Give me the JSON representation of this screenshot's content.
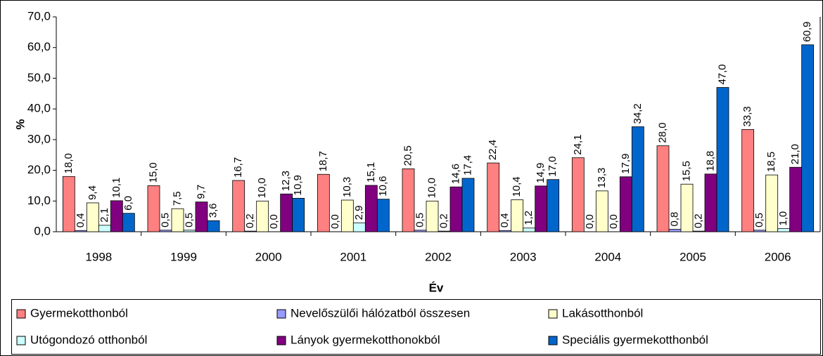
{
  "chart_data": {
    "type": "bar",
    "ylabel": "%",
    "xlabel": "Év",
    "categories": [
      "1998",
      "1999",
      "2000",
      "2001",
      "2002",
      "2003",
      "2004",
      "2005",
      "2006"
    ],
    "series": [
      {
        "name": "Gyermekotthonból",
        "color": "#ff8080",
        "values": [
          18.0,
          15.0,
          16.7,
          18.7,
          20.5,
          22.4,
          24.1,
          28.0,
          33.3
        ],
        "value_labels": [
          "18,0",
          "15,0",
          "16,7",
          "18,7",
          "20,5",
          "22,4",
          "24,1",
          "28,0",
          "33,3"
        ]
      },
      {
        "name": "Nevelőszülői hálózatból összesen",
        "color": "#9999ff",
        "values": [
          0.4,
          0.5,
          0.2,
          0.0,
          0.5,
          0.4,
          0.0,
          0.8,
          0.5
        ],
        "value_labels": [
          "0,4",
          "0,5",
          "0,2",
          "0,0",
          "0,5",
          "0,4",
          "0,0",
          "0,8",
          "0,5"
        ]
      },
      {
        "name": "Lakásotthonból",
        "color": "#ffffcc",
        "values": [
          9.4,
          7.5,
          10.0,
          10.3,
          10.0,
          10.4,
          13.3,
          15.5,
          18.5
        ],
        "value_labels": [
          "9,4",
          "7,5",
          "10,0",
          "10,3",
          "10,0",
          "10,4",
          "13,3",
          "15,5",
          "18,5"
        ]
      },
      {
        "name": "Utógondozó otthonból",
        "color": "#ccffff",
        "values": [
          2.1,
          0.5,
          0.0,
          2.9,
          0.2,
          1.2,
          0.0,
          0.2,
          1.0
        ],
        "value_labels": [
          "2,1",
          "0,5",
          "0,0",
          "2,9",
          "0,2",
          "1,2",
          "0,0",
          "0,2",
          "1,0"
        ]
      },
      {
        "name": "Lányok gyermekotthonokból",
        "color": "#800080",
        "values": [
          10.1,
          9.7,
          12.3,
          15.1,
          14.6,
          14.9,
          17.9,
          18.8,
          21.0
        ],
        "value_labels": [
          "10,1",
          "9,7",
          "12,3",
          "15,1",
          "14,6",
          "14,9",
          "17,9",
          "18,8",
          "21,0"
        ]
      },
      {
        "name": "Speciális gyermekotthonból",
        "color": "#0066cc",
        "values": [
          6.0,
          3.6,
          10.9,
          10.6,
          17.4,
          17.0,
          34.2,
          47.0,
          60.9
        ],
        "value_labels": [
          "6,0",
          "3,6",
          "10,9",
          "10,6",
          "17,4",
          "17,0",
          "34,2",
          "47,0",
          "60,9"
        ]
      }
    ],
    "ylim": [
      0,
      70
    ],
    "yticks": [
      {
        "value": 0,
        "label": "0,0"
      },
      {
        "value": 10,
        "label": "10,0"
      },
      {
        "value": 20,
        "label": "20,0"
      },
      {
        "value": 30,
        "label": "30,0"
      },
      {
        "value": 40,
        "label": "40,0"
      },
      {
        "value": 50,
        "label": "50,0"
      },
      {
        "value": 60,
        "label": "60,0"
      },
      {
        "value": 70,
        "label": "70,0"
      }
    ],
    "grid": false,
    "legend": "bottom"
  }
}
